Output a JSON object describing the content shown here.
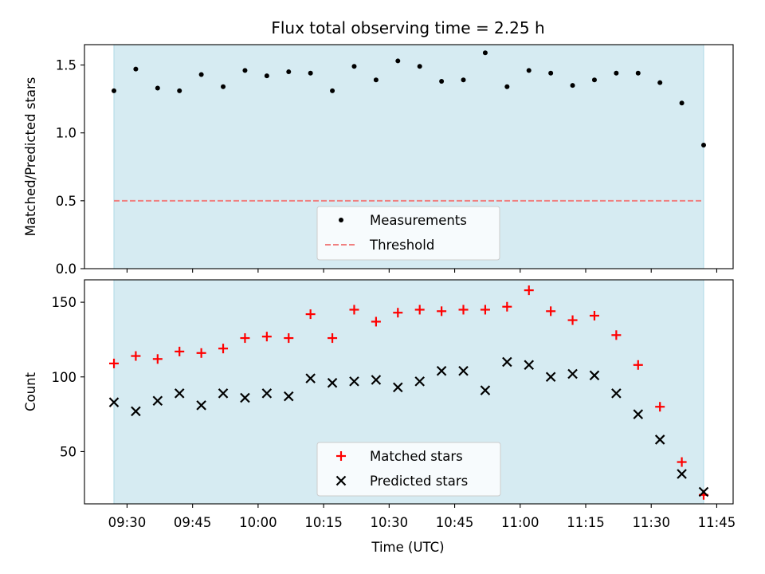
{
  "chart_data": {
    "title": "Flux total observing time = 2.25 h",
    "xlabel": "Time (UTC)",
    "x_tick_labels": [
      "09:30",
      "09:45",
      "10:00",
      "10:15",
      "10:30",
      "10:45",
      "11:00",
      "11:15",
      "11:30",
      "11:45"
    ],
    "shaded_span": {
      "start": "09:27",
      "end": "11:42",
      "color": "#add8e6"
    },
    "panels": [
      {
        "type": "scatter",
        "ylabel": "Matched/Predicted stars",
        "ylim": [
          0,
          1.65
        ],
        "y_ticks": [
          "0.0",
          "0.5",
          "1.0",
          "1.5"
        ],
        "legend": {
          "placement": "lower center",
          "entries": [
            "Measurements",
            "Threshold"
          ]
        },
        "series": [
          {
            "name": "Measurements",
            "marker": "dot",
            "color": "#000000",
            "x": [
              "09:27",
              "09:32",
              "09:37",
              "09:42",
              "09:47",
              "09:52",
              "09:57",
              "10:02",
              "10:07",
              "10:12",
              "10:17",
              "10:22",
              "10:27",
              "10:32",
              "10:37",
              "10:42",
              "10:47",
              "10:52",
              "10:57",
              "11:02",
              "11:07",
              "11:12",
              "11:17",
              "11:22",
              "11:27",
              "11:32",
              "11:37",
              "11:42"
            ],
            "y": [
              1.31,
              1.47,
              1.33,
              1.31,
              1.43,
              1.34,
              1.46,
              1.42,
              1.45,
              1.44,
              1.31,
              1.49,
              1.39,
              1.53,
              1.49,
              1.38,
              1.39,
              1.59,
              1.34,
              1.46,
              1.44,
              1.35,
              1.39,
              1.44,
              1.44,
              1.37,
              1.22,
              0.91
            ]
          },
          {
            "name": "Threshold",
            "line": "dashed",
            "color": "#f08080",
            "x": [
              "09:27",
              "11:42"
            ],
            "y": [
              0.5,
              0.5
            ]
          }
        ]
      },
      {
        "type": "scatter",
        "ylabel": "Count",
        "ylim": [
          15,
          165
        ],
        "y_ticks": [
          "50",
          "100",
          "150"
        ],
        "legend": {
          "placement": "lower center",
          "entries": [
            "Matched stars",
            "Predicted stars"
          ]
        },
        "series": [
          {
            "name": "Matched stars",
            "marker": "+",
            "color": "#ff0000",
            "x": [
              "09:27",
              "09:32",
              "09:37",
              "09:42",
              "09:47",
              "09:52",
              "09:57",
              "10:02",
              "10:07",
              "10:12",
              "10:17",
              "10:22",
              "10:27",
              "10:32",
              "10:37",
              "10:42",
              "10:47",
              "10:52",
              "10:57",
              "11:02",
              "11:07",
              "11:12",
              "11:17",
              "11:22",
              "11:27",
              "11:32",
              "11:37",
              "11:42"
            ],
            "y": [
              109,
              114,
              112,
              117,
              116,
              119,
              126,
              127,
              126,
              142,
              126,
              145,
              137,
              143,
              145,
              144,
              145,
              145,
              147,
              158,
              144,
              138,
              141,
              128,
              108,
              80,
              43,
              21
            ]
          },
          {
            "name": "Predicted stars",
            "marker": "x",
            "color": "#000000",
            "x": [
              "09:27",
              "09:32",
              "09:37",
              "09:42",
              "09:47",
              "09:52",
              "09:57",
              "10:02",
              "10:07",
              "10:12",
              "10:17",
              "10:22",
              "10:27",
              "10:32",
              "10:37",
              "10:42",
              "10:47",
              "10:52",
              "10:57",
              "11:02",
              "11:07",
              "11:12",
              "11:17",
              "11:22",
              "11:27",
              "11:32",
              "11:37",
              "11:42"
            ],
            "y": [
              83,
              77,
              84,
              89,
              81,
              89,
              86,
              89,
              87,
              99,
              96,
              97,
              98,
              93,
              97,
              104,
              104,
              91,
              110,
              108,
              100,
              102,
              101,
              89,
              75,
              58,
              35,
              23
            ]
          }
        ]
      }
    ]
  }
}
